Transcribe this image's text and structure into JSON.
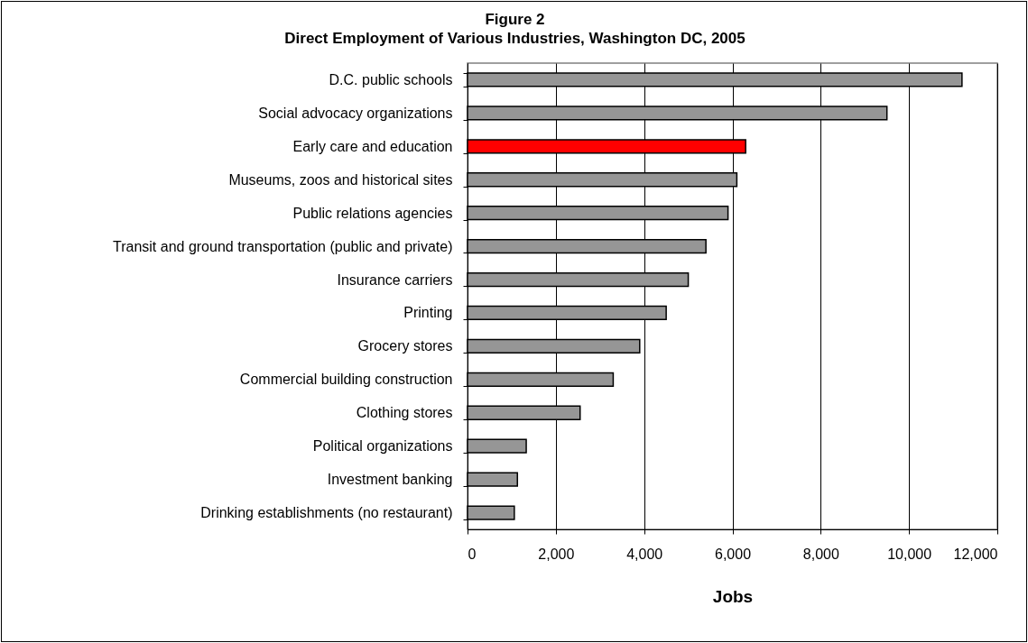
{
  "chart_data": {
    "type": "bar",
    "orientation": "horizontal",
    "title": "Figure 2",
    "subtitle": "Direct Employment of Various Industries, Washington DC, 2005",
    "xlabel": "Jobs",
    "categories": [
      "D.C. public schools",
      "Social advocacy organizations",
      "Early care and education",
      "Museums, zoos and historical sites",
      "Public relations agencies",
      "Transit and ground transportation (public and private)",
      "Insurance carriers",
      "Printing",
      "Grocery stores",
      "Commercial building construction",
      "Clothing stores",
      "Political organizations",
      "Investment banking",
      "Drinking establishments (no restaurant)"
    ],
    "values": [
      11200,
      9500,
      6300,
      6100,
      5900,
      5400,
      5000,
      4500,
      3900,
      3300,
      2550,
      1330,
      1130,
      1060
    ],
    "colors": [
      "#969696",
      "#969696",
      "#ff0000",
      "#969696",
      "#969696",
      "#969696",
      "#969696",
      "#969696",
      "#969696",
      "#969696",
      "#969696",
      "#969696",
      "#969696",
      "#969696"
    ],
    "xlim": [
      0,
      12000
    ],
    "xticks": [
      0,
      {
        "value": 2000,
        "label": "2,000"
      },
      {
        "value": 4000,
        "label": "4,000"
      },
      {
        "value": 6000,
        "label": "6,000"
      },
      {
        "value": 8000,
        "label": "8,000"
      },
      {
        "value": 10000,
        "label": "10,000"
      },
      {
        "value": 12000,
        "label": "12,000"
      }
    ],
    "grid": "x"
  }
}
